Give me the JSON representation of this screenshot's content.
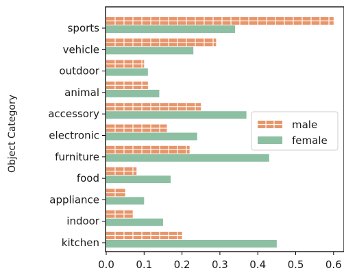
{
  "chart_data": {
    "type": "bar",
    "orientation": "horizontal",
    "title": "",
    "xlabel": "",
    "ylabel": "Object Category",
    "categories": [
      "sports",
      "vehicle",
      "outdoor",
      "animal",
      "accessory",
      "electronic",
      "furniture",
      "food",
      "appliance",
      "indoor",
      "kitchen"
    ],
    "series": [
      {
        "name": "male",
        "color": "#E8956A",
        "hatch": "horizontal-line",
        "values": [
          0.6,
          0.29,
          0.1,
          0.11,
          0.25,
          0.16,
          0.22,
          0.08,
          0.05,
          0.07,
          0.2
        ]
      },
      {
        "name": "female",
        "color": "#8DBFA3",
        "values": [
          0.34,
          0.23,
          0.11,
          0.14,
          0.37,
          0.24,
          0.43,
          0.17,
          0.1,
          0.15,
          0.45
        ]
      }
    ],
    "xlim": [
      0.0,
      0.6
    ],
    "xticks": [
      "0.0",
      "0.1",
      "0.2",
      "0.3",
      "0.4",
      "0.5",
      "0.6"
    ],
    "grid": false,
    "legend_position": "center-right"
  }
}
